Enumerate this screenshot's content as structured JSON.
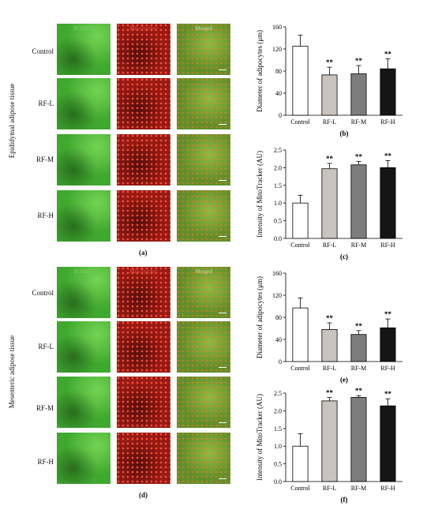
{
  "panels": {
    "a": {
      "letter": "(a)",
      "side_label": "Epididymal adipose tissue",
      "columns": [
        "BODIPY",
        "MitoTracker",
        "Merged"
      ],
      "rows": [
        "Control",
        "RF-L",
        "RF-M",
        "RF-H"
      ]
    },
    "d": {
      "letter": "(d)",
      "side_label": "Mesenteric adipose tissue",
      "columns": [
        "BODIPY",
        "MitoTracker",
        "Merged"
      ],
      "rows": [
        "Control",
        "RF-L",
        "RF-M",
        "RF-H"
      ]
    }
  },
  "colors": {
    "control": "#ffffff",
    "rfl": "#c8c3bd",
    "rfm": "#7e7d7d",
    "rfh": "#151515",
    "bodipy": "#3fa82e",
    "mitotracker": "#9a1a12"
  },
  "chart_data": [
    {
      "id": "b",
      "letter": "(b)",
      "type": "bar",
      "ylabel": "Diameter of adipocytes (μm)",
      "ylim": [
        0,
        160
      ],
      "yticks": [
        "0",
        "40",
        "80",
        "120",
        "160"
      ],
      "categories": [
        "Control",
        "RF-L",
        "RF-M",
        "RF-H"
      ],
      "values": [
        125,
        73,
        75,
        84
      ],
      "errors": [
        20,
        14,
        15,
        18
      ],
      "annotations": [
        "",
        "**",
        "**",
        "**"
      ]
    },
    {
      "id": "c",
      "letter": "(c)",
      "type": "bar",
      "ylabel": "Intensity of MitoTracker (AU)",
      "ylim": [
        0,
        2.5
      ],
      "yticks": [
        "0.0",
        "0.5",
        "1.0",
        "1.5",
        "2.0",
        "2.5"
      ],
      "categories": [
        "Control",
        "RF-L",
        "RF-M",
        "RF-H"
      ],
      "values": [
        1.0,
        1.97,
        2.08,
        2.0
      ],
      "errors": [
        0.22,
        0.15,
        0.1,
        0.2
      ],
      "annotations": [
        "",
        "**",
        "**",
        "**"
      ]
    },
    {
      "id": "e",
      "letter": "(e)",
      "type": "bar",
      "ylabel": "Diameter of adipocytes (μm)",
      "ylim": [
        0,
        160
      ],
      "yticks": [
        "0",
        "40",
        "80",
        "120",
        "160"
      ],
      "categories": [
        "Control",
        "RF-L",
        "RF-M",
        "RF-H"
      ],
      "values": [
        97,
        58,
        49,
        61
      ],
      "errors": [
        18,
        12,
        7,
        16
      ],
      "annotations": [
        "",
        "**",
        "**",
        "**"
      ]
    },
    {
      "id": "f",
      "letter": "(f)",
      "type": "bar",
      "ylabel": "Intensity of MitoTracker (AU)",
      "ylim": [
        0,
        2.5
      ],
      "yticks": [
        "0.0",
        "0.5",
        "1.0",
        "1.5",
        "2.0",
        "2.5"
      ],
      "categories": [
        "Control",
        "RF-L",
        "RF-M",
        "RF-H"
      ],
      "values": [
        1.0,
        2.28,
        2.38,
        2.14
      ],
      "errors": [
        0.35,
        0.1,
        0.05,
        0.2
      ],
      "annotations": [
        "",
        "**",
        "**",
        "**"
      ]
    }
  ]
}
